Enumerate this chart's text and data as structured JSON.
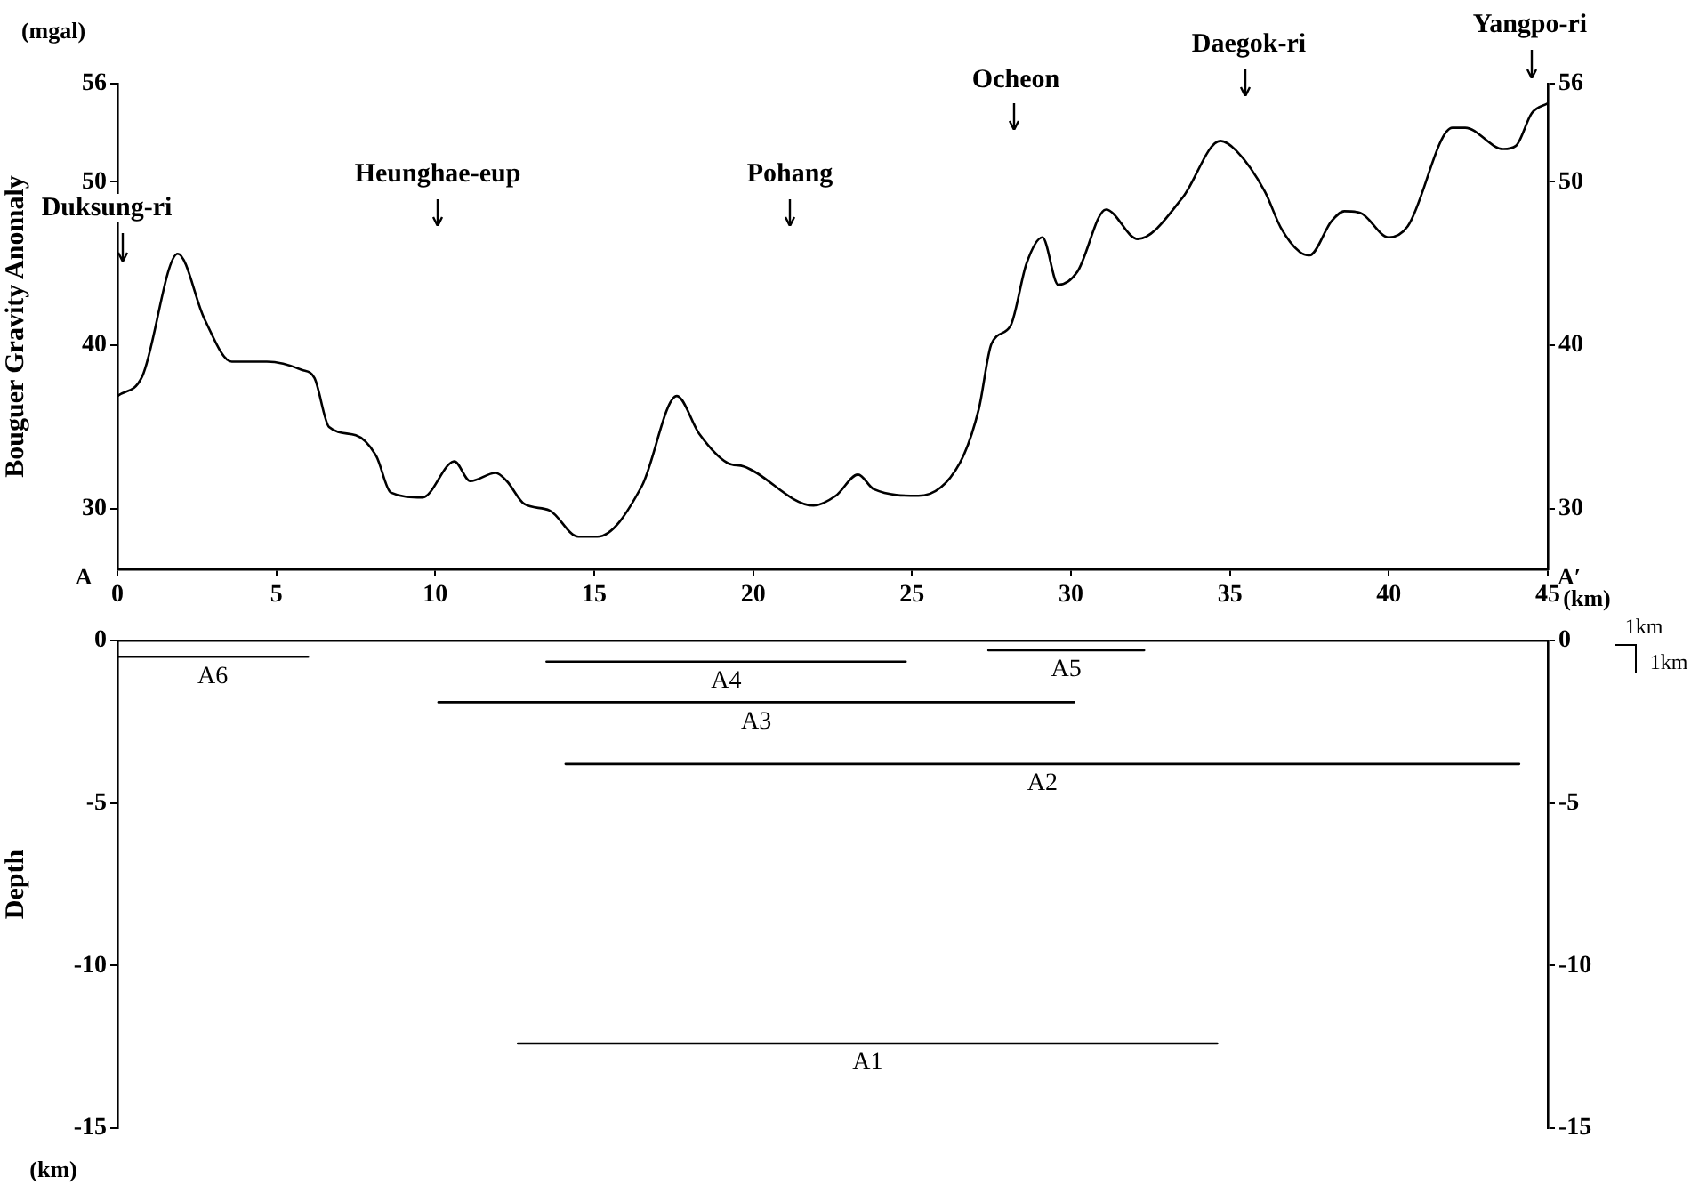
{
  "chart_data": [
    {
      "type": "line",
      "ylabel": "Bouguer Gravity Anomaly",
      "x": [
        0,
        0.78,
        1.9,
        2.74,
        3.6,
        4.7,
        5.8,
        6.2,
        6.66,
        7.5,
        8.15,
        8.6,
        9.6,
        10.6,
        11.1,
        11.9,
        12.25,
        12.8,
        13.6,
        14.5,
        15.1,
        16.5,
        17.6,
        18.3,
        19.2,
        19.7,
        21.9,
        22.6,
        23.3,
        23.8,
        25.2,
        26.5,
        27.1,
        27.5,
        28.1,
        28.6,
        29.1,
        29.6,
        30.2,
        31.1,
        32.1,
        33.5,
        34.7,
        35.2,
        36.1,
        36.6,
        37.2,
        37.5,
        38.2,
        38.6,
        39.1,
        40.0,
        40.6,
        42.0,
        42.4,
        43.6,
        44.0,
        44.5,
        45.0
      ],
      "series": [
        {
          "color": "#000000",
          "values": [
            36.9,
            38.1,
            45.6,
            41.6,
            39.0,
            39.0,
            38.5,
            38.0,
            35.0,
            34.5,
            33.2,
            31.0,
            30.7,
            32.9,
            31.7,
            32.2,
            31.7,
            30.3,
            29.9,
            28.3,
            28.3,
            31.4,
            36.9,
            34.6,
            32.8,
            32.6,
            30.2,
            30.8,
            32.1,
            31.2,
            30.8,
            32.8,
            36.1,
            40.1,
            41.2,
            45.0,
            46.6,
            43.7,
            44.5,
            48.3,
            46.5,
            49.0,
            52.5,
            51.9,
            49.4,
            47.2,
            45.7,
            45.5,
            47.6,
            48.2,
            48.1,
            46.6,
            47.3,
            53.3,
            53.3,
            52.0,
            52.2,
            54.2,
            54.8
          ]
        }
      ],
      "xlim": [
        0,
        45
      ],
      "xticks": [
        0,
        5,
        10,
        15,
        20,
        25,
        30,
        35,
        40,
        45
      ],
      "ylim": [
        26.3,
        56
      ],
      "yticks": [
        30,
        40,
        50,
        56
      ],
      "y2lim": [
        26.3,
        56
      ],
      "y2ticks": [
        30,
        40,
        50,
        56
      ],
      "grid": false,
      "legend": false,
      "marker": "none",
      "line_style": "solid",
      "annotations": [
        "(mgal)",
        "A",
        "A′",
        "(km)",
        "Duksung-ri",
        "Heunghae-eup",
        "Pohang",
        "Ocheon",
        "Daegok-ri",
        "Yangpo-ri"
      ]
    },
    {
      "type": "line",
      "ylabel": "Depth",
      "series": [
        {
          "name": "A6",
          "color": "#000000",
          "x": [
            0,
            6.0
          ],
          "values": [
            -0.5,
            -0.5
          ]
        },
        {
          "name": "A4",
          "color": "#000000",
          "x": [
            13.5,
            24.8
          ],
          "values": [
            -0.65,
            -0.65
          ]
        },
        {
          "name": "A5",
          "color": "#000000",
          "x": [
            27.4,
            32.3
          ],
          "values": [
            -0.3,
            -0.3
          ]
        },
        {
          "name": "A3",
          "color": "#000000",
          "x": [
            10.1,
            30.1
          ],
          "values": [
            -1.9,
            -1.9
          ]
        },
        {
          "name": "A2",
          "color": "#000000",
          "x": [
            14.1,
            44.1
          ],
          "values": [
            -3.8,
            -3.8
          ]
        },
        {
          "name": "A1",
          "color": "#000000",
          "x": [
            12.6,
            34.6
          ],
          "values": [
            -12.4,
            -12.4
          ]
        }
      ],
      "xlim": [
        0,
        45
      ],
      "tick_labels": "y",
      "ylim": [
        -15,
        0
      ],
      "yticks": [
        0,
        -5,
        -10,
        -15
      ],
      "y2lim": [
        -15,
        0
      ],
      "y2ticks": [
        0,
        -5,
        -10,
        -15
      ],
      "grid": false,
      "legend": false,
      "marker": "none",
      "line_style": "solid",
      "annotations": [
        "(km)",
        "1km",
        "1km"
      ]
    }
  ]
}
